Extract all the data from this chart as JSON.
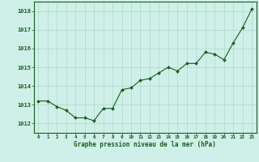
{
  "x": [
    0,
    1,
    2,
    3,
    4,
    5,
    6,
    7,
    8,
    9,
    10,
    11,
    12,
    13,
    14,
    15,
    16,
    17,
    18,
    19,
    20,
    21,
    22,
    23
  ],
  "y": [
    1013.2,
    1013.2,
    1012.9,
    1012.7,
    1012.3,
    1012.3,
    1012.15,
    1012.8,
    1012.8,
    1013.8,
    1013.9,
    1014.3,
    1014.4,
    1014.7,
    1015.0,
    1014.8,
    1015.2,
    1015.2,
    1015.8,
    1015.7,
    1015.4,
    1016.3,
    1017.1,
    1018.1
  ],
  "line_color": "#1a5c1a",
  "marker_color": "#1a5c1a",
  "bg_color": "#cef0e8",
  "grid_color": "#b0d8cc",
  "xlabel": "Graphe pression niveau de la mer (hPa)",
  "xlabel_color": "#1a5c1a",
  "ytick_labels": [
    1012,
    1013,
    1014,
    1015,
    1016,
    1017,
    1018
  ],
  "xtick_labels": [
    0,
    1,
    2,
    3,
    4,
    5,
    6,
    7,
    8,
    9,
    10,
    11,
    12,
    13,
    14,
    15,
    16,
    17,
    18,
    19,
    20,
    21,
    22,
    23
  ],
  "ylim": [
    1011.5,
    1018.5
  ],
  "xlim": [
    -0.5,
    23.5
  ],
  "tick_color": "#1a5c1a",
  "spine_color": "#1a5c1a"
}
